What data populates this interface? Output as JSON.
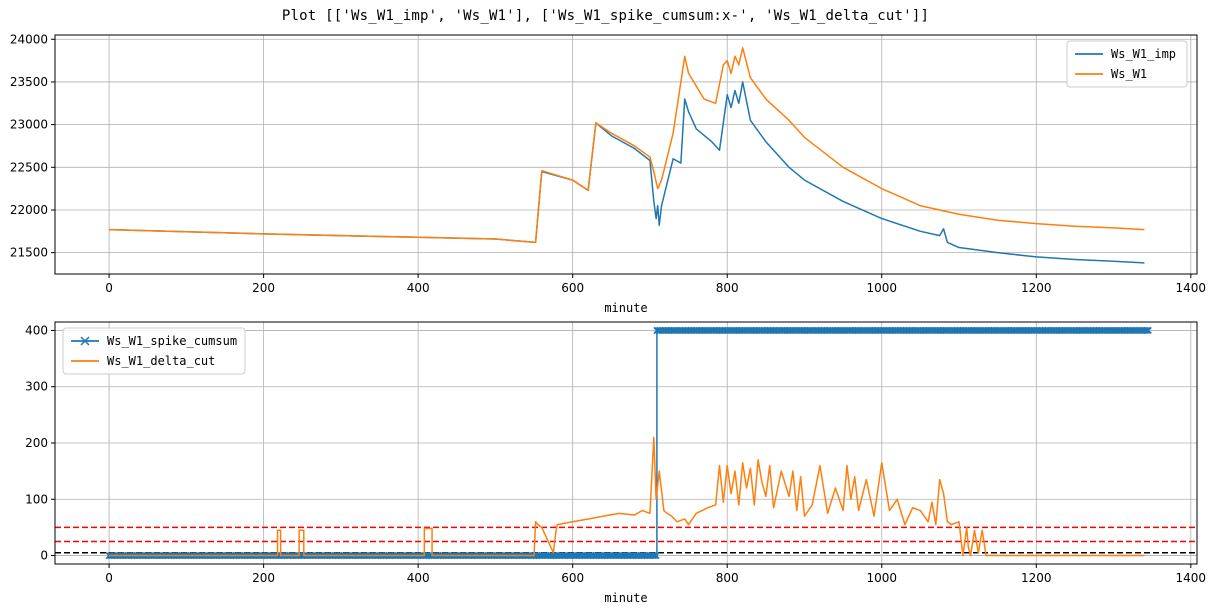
{
  "figure": {
    "title": "Plot [['Ws_W1_imp', 'Ws_W1'], ['Ws_W1_spike_cumsum:x-', 'Ws_W1_delta_cut']]"
  },
  "chart_data": [
    {
      "type": "line",
      "xlabel": "minute",
      "ylabel": "",
      "xlim": [
        -70,
        1408
      ],
      "ylim": [
        21250,
        24050
      ],
      "xticks": [
        0,
        200,
        400,
        600,
        800,
        1000,
        1200,
        1400
      ],
      "yticks": [
        21500,
        22000,
        22500,
        23000,
        23500,
        24000
      ],
      "grid": true,
      "legend_position": "upper right",
      "series": [
        {
          "name": "Ws_W1_imp",
          "color": "#1f77b4",
          "x": [
            0,
            100,
            200,
            300,
            400,
            500,
            552,
            560,
            600,
            620,
            630,
            650,
            680,
            700,
            705,
            708,
            710,
            712,
            715,
            730,
            740,
            745,
            750,
            760,
            780,
            790,
            800,
            805,
            810,
            815,
            820,
            830,
            850,
            880,
            900,
            950,
            1000,
            1050,
            1075,
            1080,
            1085,
            1100,
            1150,
            1200,
            1250,
            1300,
            1340
          ],
          "y": [
            21770,
            21745,
            21720,
            21700,
            21680,
            21660,
            21620,
            22450,
            22350,
            22230,
            23020,
            22870,
            22720,
            22580,
            22100,
            21900,
            22050,
            21820,
            22050,
            22600,
            22550,
            23300,
            23150,
            22950,
            22800,
            22700,
            23350,
            23200,
            23400,
            23250,
            23500,
            23050,
            22800,
            22500,
            22350,
            22100,
            21900,
            21750,
            21700,
            21780,
            21620,
            21560,
            21500,
            21450,
            21420,
            21400,
            21380
          ]
        },
        {
          "name": "Ws_W1",
          "color": "#ff7f0e",
          "x": [
            0,
            100,
            200,
            300,
            400,
            500,
            552,
            560,
            600,
            620,
            630,
            650,
            680,
            700,
            705,
            710,
            715,
            730,
            745,
            750,
            770,
            785,
            795,
            800,
            805,
            810,
            815,
            820,
            830,
            850,
            880,
            900,
            950,
            1000,
            1050,
            1100,
            1150,
            1200,
            1250,
            1300,
            1340
          ],
          "y": [
            21770,
            21745,
            21720,
            21700,
            21680,
            21660,
            21620,
            22460,
            22350,
            22230,
            23020,
            22900,
            22750,
            22620,
            22450,
            22250,
            22350,
            22900,
            23800,
            23600,
            23300,
            23250,
            23700,
            23750,
            23600,
            23800,
            23700,
            23900,
            23550,
            23300,
            23050,
            22850,
            22500,
            22250,
            22050,
            21950,
            21880,
            21840,
            21810,
            21790,
            21770
          ]
        }
      ]
    },
    {
      "type": "line",
      "xlabel": "minute",
      "ylabel": "",
      "xlim": [
        -70,
        1408
      ],
      "ylim": [
        -15,
        415
      ],
      "xticks": [
        0,
        200,
        400,
        600,
        800,
        1000,
        1200,
        1400
      ],
      "yticks": [
        0,
        100,
        200,
        300,
        400
      ],
      "grid": true,
      "legend_position": "upper left",
      "hlines": [
        {
          "y": 50,
          "color": "#ff0000",
          "style": "dashed"
        },
        {
          "y": 25,
          "color": "#ff0000",
          "style": "dashed"
        },
        {
          "y": 5,
          "color": "#000000",
          "style": "dashed"
        }
      ],
      "series": [
        {
          "name": "Ws_W1_spike_cumsum",
          "color": "#1f77b4",
          "marker": "x",
          "step": [
            [
              0,
              709,
              0
            ],
            [
              709,
              1345,
              400
            ]
          ]
        },
        {
          "name": "Ws_W1_delta_cut",
          "color": "#ff7f0e",
          "x": [
            0,
            218,
            218,
            222,
            222,
            246,
            246,
            252,
            252,
            408,
            408,
            418,
            418,
            550,
            552,
            555,
            560,
            575,
            578,
            580,
            600,
            620,
            640,
            660,
            680,
            690,
            700,
            705,
            708,
            712,
            718,
            722,
            728,
            735,
            745,
            750,
            760,
            775,
            785,
            790,
            795,
            800,
            805,
            810,
            815,
            820,
            825,
            830,
            835,
            840,
            845,
            850,
            855,
            860,
            870,
            880,
            885,
            890,
            895,
            900,
            910,
            920,
            930,
            940,
            950,
            955,
            960,
            965,
            970,
            980,
            990,
            1000,
            1010,
            1020,
            1030,
            1040,
            1050,
            1060,
            1065,
            1070,
            1075,
            1080,
            1085,
            1090,
            1100,
            1105,
            1110,
            1112,
            1115,
            1120,
            1125,
            1130,
            1135,
            1140,
            1200,
            1300,
            1340
          ],
          "y": [
            0,
            0,
            45,
            45,
            0,
            0,
            45,
            45,
            0,
            0,
            48,
            48,
            0,
            0,
            60,
            55,
            50,
            5,
            40,
            55,
            60,
            65,
            70,
            75,
            72,
            80,
            75,
            210,
            100,
            150,
            80,
            75,
            70,
            60,
            65,
            55,
            75,
            85,
            90,
            160,
            95,
            160,
            110,
            150,
            90,
            165,
            120,
            155,
            90,
            170,
            130,
            105,
            160,
            85,
            150,
            105,
            150,
            80,
            140,
            70,
            90,
            160,
            75,
            120,
            80,
            160,
            100,
            140,
            80,
            135,
            70,
            165,
            80,
            100,
            55,
            85,
            80,
            60,
            95,
            55,
            135,
            110,
            60,
            55,
            60,
            0,
            50,
            15,
            0,
            45,
            5,
            45,
            0,
            0,
            0,
            0,
            0
          ]
        }
      ]
    }
  ]
}
